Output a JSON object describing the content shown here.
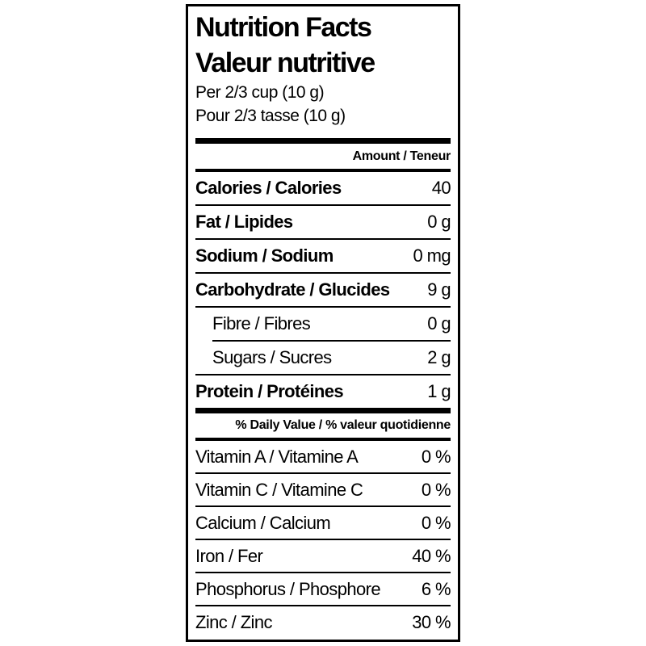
{
  "label": {
    "title_en": "Nutrition Facts",
    "title_fr": "Valeur nutritive",
    "serving_en": "Per 2/3 cup (10 g)",
    "serving_fr": "Pour 2/3 tasse (10 g)",
    "amount_header": "Amount / Teneur",
    "daily_value_header": "% Daily Value / % valeur quotidienne",
    "nutrients": [
      {
        "name": "Calories / Calories",
        "value": "40",
        "bold": true,
        "indent": false
      },
      {
        "name": "Fat / Lipides",
        "value": "0 g",
        "bold": true,
        "indent": false
      },
      {
        "name": "Sodium / Sodium",
        "value": "0 mg",
        "bold": true,
        "indent": false
      },
      {
        "name": "Carbohydrate / Glucides",
        "value": "9 g",
        "bold": true,
        "indent": false
      },
      {
        "name": "Fibre / Fibres",
        "value": "0 g",
        "bold": false,
        "indent": true
      },
      {
        "name": "Sugars / Sucres",
        "value": "2 g",
        "bold": false,
        "indent": true
      },
      {
        "name": "Protein / Protéines",
        "value": "1 g",
        "bold": true,
        "indent": false
      }
    ],
    "daily_values": [
      {
        "name": "Vitamin A / Vitamine A",
        "value": "0 %",
        "bold": false,
        "indent": false
      },
      {
        "name": "Vitamin C / Vitamine C",
        "value": "0 %",
        "bold": false,
        "indent": false
      },
      {
        "name": "Calcium / Calcium",
        "value": "0 %",
        "bold": false,
        "indent": false
      },
      {
        "name": "Iron / Fer",
        "value": "40 %",
        "bold": false,
        "indent": false
      },
      {
        "name": "Phosphorus / Phosphore",
        "value": "6 %",
        "bold": false,
        "indent": false
      },
      {
        "name": "Zinc / Zinc",
        "value": "30 %",
        "bold": false,
        "indent": false
      }
    ],
    "colors": {
      "text": "#000000",
      "background": "#ffffff",
      "border": "#000000"
    }
  }
}
